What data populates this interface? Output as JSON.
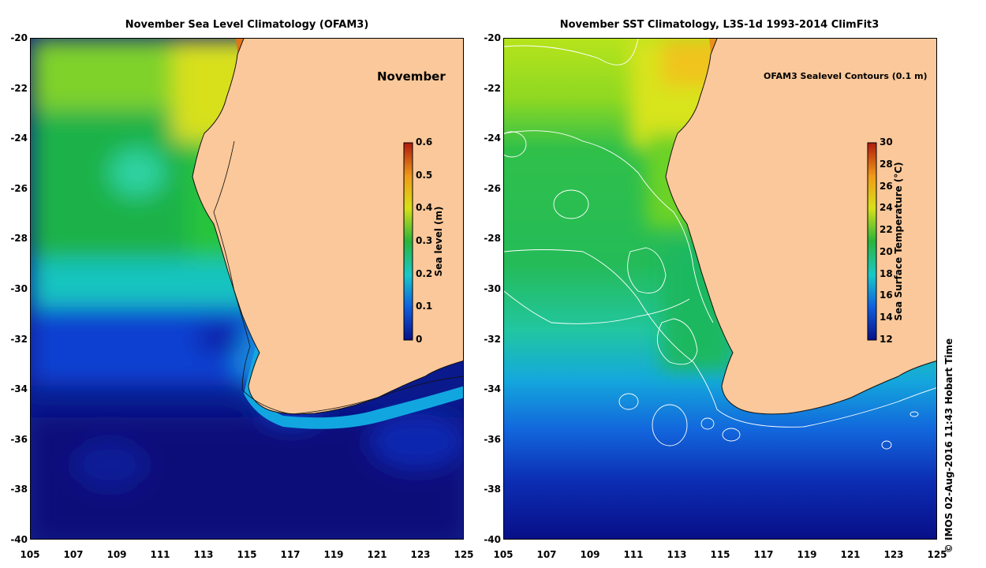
{
  "panels": [
    {
      "title": "November Sea Level Climatology (OFAM3)",
      "overlay_text": "November",
      "colorbar": {
        "label": "Sea level (m)",
        "ticks": [
          "0.6",
          "0.5",
          "0.4",
          "0.3",
          "0.2",
          "0.1",
          "0"
        ],
        "range": [
          0,
          0.6
        ]
      }
    },
    {
      "title": "November SST Climatology, L3S-1d 1993-2014 ClimFit3",
      "overlay_text": "OFAM3 Sealevel Contours (0.1 m)",
      "colorbar": {
        "label": "Sea Surface Temperature (°C)",
        "ticks": [
          "30",
          "28",
          "26",
          "24",
          "22",
          "20",
          "18",
          "16",
          "14",
          "12"
        ],
        "range": [
          12,
          30
        ]
      }
    }
  ],
  "axes": {
    "lon_ticks": [
      "105",
      "107",
      "109",
      "111",
      "113",
      "115",
      "117",
      "119",
      "121",
      "123",
      "125"
    ],
    "lat_ticks": [
      "-20",
      "-22",
      "-24",
      "-26",
      "-28",
      "-30",
      "-32",
      "-34",
      "-36",
      "-38",
      "-40"
    ],
    "lon_range": [
      105,
      125
    ],
    "lat_range": [
      -20,
      -40
    ]
  },
  "credit": "© IMOS 02-Aug-2016 11:43 Hobart Time",
  "colors": {
    "land": "#fac89a",
    "coast": "#111111"
  }
}
